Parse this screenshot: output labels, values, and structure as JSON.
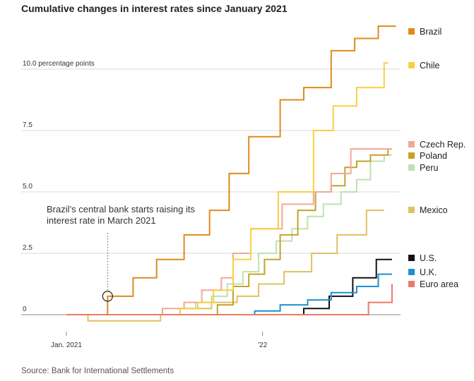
{
  "title": "Cumulative changes in interest rates since January 2021",
  "source": "Source: Bank for International Settlements",
  "chart_data": {
    "type": "line",
    "title": "Cumulative changes in interest rates since January 2021",
    "ylabel": "percentage points",
    "ylim": [
      0,
      12
    ],
    "xlim": [
      2021.0,
      2022.7
    ],
    "x_ticks": [
      {
        "x": 2021.0,
        "label": "Jan. 2021"
      },
      {
        "x": 2022.0,
        "label": "’22"
      }
    ],
    "y_ticks": [
      {
        "value": 0,
        "label": "0"
      },
      {
        "value": 2.5,
        "label": "2.5"
      },
      {
        "value": 5.0,
        "label": "5.0"
      },
      {
        "value": 7.5,
        "label": "7.5"
      },
      {
        "value": 10.0,
        "label": "10.0",
        "suffix": "percentage points"
      }
    ],
    "annotation": {
      "lines": [
        "Brazil’s central bank starts raising its",
        "interest rate in March 2021"
      ],
      "x": 2021.21,
      "y": 0.75
    },
    "series": [
      {
        "name": "Mexico",
        "color": "#e0c060",
        "points": [
          [
            2021.0,
            0
          ],
          [
            2021.11,
            0
          ],
          [
            2021.11,
            -0.25
          ],
          [
            2021.48,
            -0.25
          ],
          [
            2021.48,
            0
          ],
          [
            2021.58,
            0
          ],
          [
            2021.58,
            0.25
          ],
          [
            2021.74,
            0.25
          ],
          [
            2021.74,
            0.5
          ],
          [
            2021.87,
            0.5
          ],
          [
            2021.87,
            0.75
          ],
          [
            2021.98,
            0.75
          ],
          [
            2021.98,
            1.25
          ],
          [
            2022.11,
            1.25
          ],
          [
            2022.11,
            1.75
          ],
          [
            2022.25,
            1.75
          ],
          [
            2022.25,
            2.5
          ],
          [
            2022.38,
            2.5
          ],
          [
            2022.38,
            3.25
          ],
          [
            2022.53,
            3.25
          ],
          [
            2022.53,
            4.25
          ],
          [
            2022.62,
            4.25
          ]
        ]
      },
      {
        "name": "Peru",
        "color": "#bfe0b0",
        "points": [
          [
            2021.0,
            0
          ],
          [
            2021.58,
            0
          ],
          [
            2021.58,
            0.25
          ],
          [
            2021.66,
            0.25
          ],
          [
            2021.66,
            0.5
          ],
          [
            2021.74,
            0.5
          ],
          [
            2021.74,
            0.75
          ],
          [
            2021.82,
            0.75
          ],
          [
            2021.82,
            1.25
          ],
          [
            2021.9,
            1.25
          ],
          [
            2021.9,
            1.75
          ],
          [
            2021.98,
            1.75
          ],
          [
            2021.98,
            2.5
          ],
          [
            2022.07,
            2.5
          ],
          [
            2022.07,
            3.0
          ],
          [
            2022.15,
            3.0
          ],
          [
            2022.15,
            3.5
          ],
          [
            2022.23,
            3.5
          ],
          [
            2022.23,
            4.0
          ],
          [
            2022.31,
            4.0
          ],
          [
            2022.31,
            4.5
          ],
          [
            2022.4,
            4.5
          ],
          [
            2022.4,
            5.0
          ],
          [
            2022.48,
            5.0
          ],
          [
            2022.48,
            5.5
          ],
          [
            2022.55,
            5.5
          ],
          [
            2022.55,
            6.25
          ],
          [
            2022.62,
            6.25
          ],
          [
            2022.62,
            6.5
          ],
          [
            2022.66,
            6.5
          ]
        ]
      },
      {
        "name": "Poland",
        "color": "#c4a22a",
        "points": [
          [
            2021.0,
            0
          ],
          [
            2021.77,
            0
          ],
          [
            2021.77,
            0.4
          ],
          [
            2021.85,
            0.4
          ],
          [
            2021.85,
            1.15
          ],
          [
            2021.93,
            1.15
          ],
          [
            2021.93,
            1.65
          ],
          [
            2022.01,
            1.65
          ],
          [
            2022.01,
            2.25
          ],
          [
            2022.09,
            2.25
          ],
          [
            2022.09,
            3.25
          ],
          [
            2022.18,
            3.25
          ],
          [
            2022.18,
            4.25
          ],
          [
            2022.27,
            4.25
          ],
          [
            2022.27,
            5.0
          ],
          [
            2022.35,
            5.0
          ],
          [
            2022.35,
            5.25
          ],
          [
            2022.42,
            5.25
          ],
          [
            2022.42,
            6.0
          ],
          [
            2022.48,
            6.0
          ],
          [
            2022.48,
            6.25
          ],
          [
            2022.55,
            6.25
          ],
          [
            2022.55,
            6.5
          ],
          [
            2022.64,
            6.5
          ],
          [
            2022.64,
            6.75
          ],
          [
            2022.66,
            6.75
          ]
        ]
      },
      {
        "name": "Czech Rep.",
        "color": "#f0a898",
        "points": [
          [
            2021.0,
            0
          ],
          [
            2021.49,
            0
          ],
          [
            2021.49,
            0.25
          ],
          [
            2021.6,
            0.25
          ],
          [
            2021.6,
            0.5
          ],
          [
            2021.69,
            0.5
          ],
          [
            2021.69,
            1.0
          ],
          [
            2021.79,
            1.0
          ],
          [
            2021.79,
            1.5
          ],
          [
            2021.85,
            1.5
          ],
          [
            2021.85,
            2.5
          ],
          [
            2021.94,
            2.5
          ],
          [
            2021.94,
            3.5
          ],
          [
            2022.1,
            3.5
          ],
          [
            2022.1,
            4.5
          ],
          [
            2022.26,
            4.5
          ],
          [
            2022.26,
            5.0
          ],
          [
            2022.35,
            5.0
          ],
          [
            2022.35,
            5.75
          ],
          [
            2022.45,
            5.75
          ],
          [
            2022.45,
            6.75
          ],
          [
            2022.66,
            6.75
          ]
        ]
      },
      {
        "name": "Chile",
        "color": "#f8d040",
        "points": [
          [
            2021.0,
            0
          ],
          [
            2021.58,
            0
          ],
          [
            2021.58,
            0.25
          ],
          [
            2021.67,
            0.25
          ],
          [
            2021.67,
            0.5
          ],
          [
            2021.75,
            0.5
          ],
          [
            2021.75,
            1.0
          ],
          [
            2021.85,
            1.0
          ],
          [
            2021.85,
            2.25
          ],
          [
            2021.94,
            2.25
          ],
          [
            2021.94,
            3.5
          ],
          [
            2022.08,
            3.5
          ],
          [
            2022.08,
            5.0
          ],
          [
            2022.26,
            5.0
          ],
          [
            2022.26,
            7.5
          ],
          [
            2022.36,
            7.5
          ],
          [
            2022.36,
            8.5
          ],
          [
            2022.48,
            8.5
          ],
          [
            2022.48,
            9.25
          ],
          [
            2022.62,
            9.25
          ],
          [
            2022.62,
            10.25
          ],
          [
            2022.64,
            10.25
          ]
        ]
      },
      {
        "name": "Brazil",
        "color": "#e08a1c",
        "points": [
          [
            2021.0,
            0
          ],
          [
            2021.21,
            0
          ],
          [
            2021.21,
            0.75
          ],
          [
            2021.34,
            0.75
          ],
          [
            2021.34,
            1.5
          ],
          [
            2021.46,
            1.5
          ],
          [
            2021.46,
            2.25
          ],
          [
            2021.6,
            2.25
          ],
          [
            2021.6,
            3.25
          ],
          [
            2021.73,
            3.25
          ],
          [
            2021.73,
            4.25
          ],
          [
            2021.83,
            4.25
          ],
          [
            2021.83,
            5.75
          ],
          [
            2021.93,
            5.75
          ],
          [
            2021.93,
            7.25
          ],
          [
            2022.09,
            7.25
          ],
          [
            2022.09,
            8.75
          ],
          [
            2022.21,
            8.75
          ],
          [
            2022.21,
            9.25
          ],
          [
            2022.35,
            9.25
          ],
          [
            2022.35,
            10.75
          ],
          [
            2022.47,
            10.75
          ],
          [
            2022.47,
            11.25
          ],
          [
            2022.59,
            11.25
          ],
          [
            2022.59,
            11.75
          ],
          [
            2022.68,
            11.75
          ]
        ]
      },
      {
        "name": "U.S.",
        "color": "#111111",
        "points": [
          [
            2021.0,
            0
          ],
          [
            2022.21,
            0
          ],
          [
            2022.21,
            0.25
          ],
          [
            2022.34,
            0.25
          ],
          [
            2022.34,
            0.75
          ],
          [
            2022.46,
            0.75
          ],
          [
            2022.46,
            1.5
          ],
          [
            2022.58,
            1.5
          ],
          [
            2022.58,
            2.25
          ],
          [
            2022.66,
            2.25
          ]
        ]
      },
      {
        "name": "U.K.",
        "color": "#1e90d0",
        "points": [
          [
            2021.0,
            0
          ],
          [
            2021.96,
            0
          ],
          [
            2021.96,
            0.15
          ],
          [
            2022.09,
            0.15
          ],
          [
            2022.09,
            0.4
          ],
          [
            2022.23,
            0.4
          ],
          [
            2022.23,
            0.6
          ],
          [
            2022.35,
            0.6
          ],
          [
            2022.35,
            0.9
          ],
          [
            2022.48,
            0.9
          ],
          [
            2022.48,
            1.15
          ],
          [
            2022.59,
            1.15
          ],
          [
            2022.59,
            1.65
          ],
          [
            2022.66,
            1.65
          ]
        ]
      },
      {
        "name": "Euro area",
        "color": "#ea7a68",
        "points": [
          [
            2021.0,
            0
          ],
          [
            2022.54,
            0
          ],
          [
            2022.54,
            0.5
          ],
          [
            2022.66,
            0.5
          ],
          [
            2022.66,
            1.25
          ]
        ]
      }
    ],
    "legend": [
      {
        "name": "Brazil",
        "color": "#e08a1c"
      },
      {
        "name": "Chile",
        "color": "#f8d040"
      },
      {
        "name": "Czech Rep.",
        "color": "#f0a898"
      },
      {
        "name": "Poland",
        "color": "#c4a22a"
      },
      {
        "name": "Peru",
        "color": "#bfe0b0"
      },
      {
        "name": "Mexico",
        "color": "#e0c060"
      },
      {
        "name": "U.S.",
        "color": "#111111"
      },
      {
        "name": "U.K.",
        "color": "#1e90d0"
      },
      {
        "name": "Euro area",
        "color": "#ea7a68"
      }
    ]
  }
}
